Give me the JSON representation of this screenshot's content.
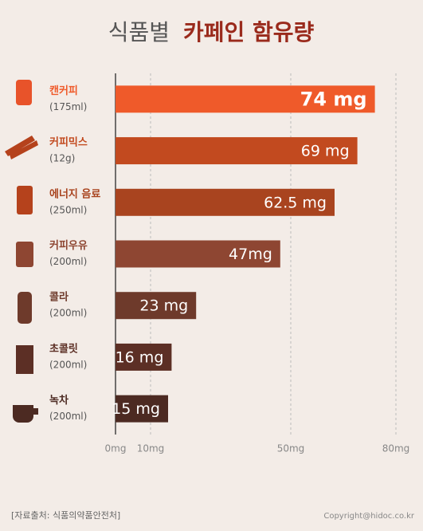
{
  "chart_data": {
    "type": "bar",
    "orientation": "horizontal",
    "title": "식품별",
    "title_highlight": "카페인 함유량",
    "categories": [
      "캔커피",
      "커피믹스",
      "에너지 음료",
      "커피우유",
      "콜라",
      "초콜릿",
      "녹차"
    ],
    "category_notes": [
      "(175ml)",
      "(12g)",
      "(250ml)",
      "(200ml)",
      "(200ml)",
      "(200ml)",
      "(200ml)"
    ],
    "values": [
      74,
      69,
      62.5,
      47,
      23,
      16,
      15
    ],
    "value_labels": [
      "74 mg",
      "69 mg",
      "62.5 mg",
      "47mg",
      "23 mg",
      "16 mg",
      "15 mg"
    ],
    "colors": [
      "#ef5a2a",
      "#c24a1f",
      "#a9441f",
      "#8e4632",
      "#6e3a2b",
      "#5c2f25",
      "#4c2a22"
    ],
    "xlim": [
      0,
      80
    ],
    "xticks": [
      {
        "value": 0,
        "label": "0mg"
      },
      {
        "value": 10,
        "label": "10mg"
      },
      {
        "value": 50,
        "label": "50mg"
      },
      {
        "value": 80,
        "label": "80mg"
      }
    ],
    "grid": true,
    "source": "[자료출처: 식품의약품안전처]",
    "copyright": "Copyright@hidoc.co.kr"
  }
}
